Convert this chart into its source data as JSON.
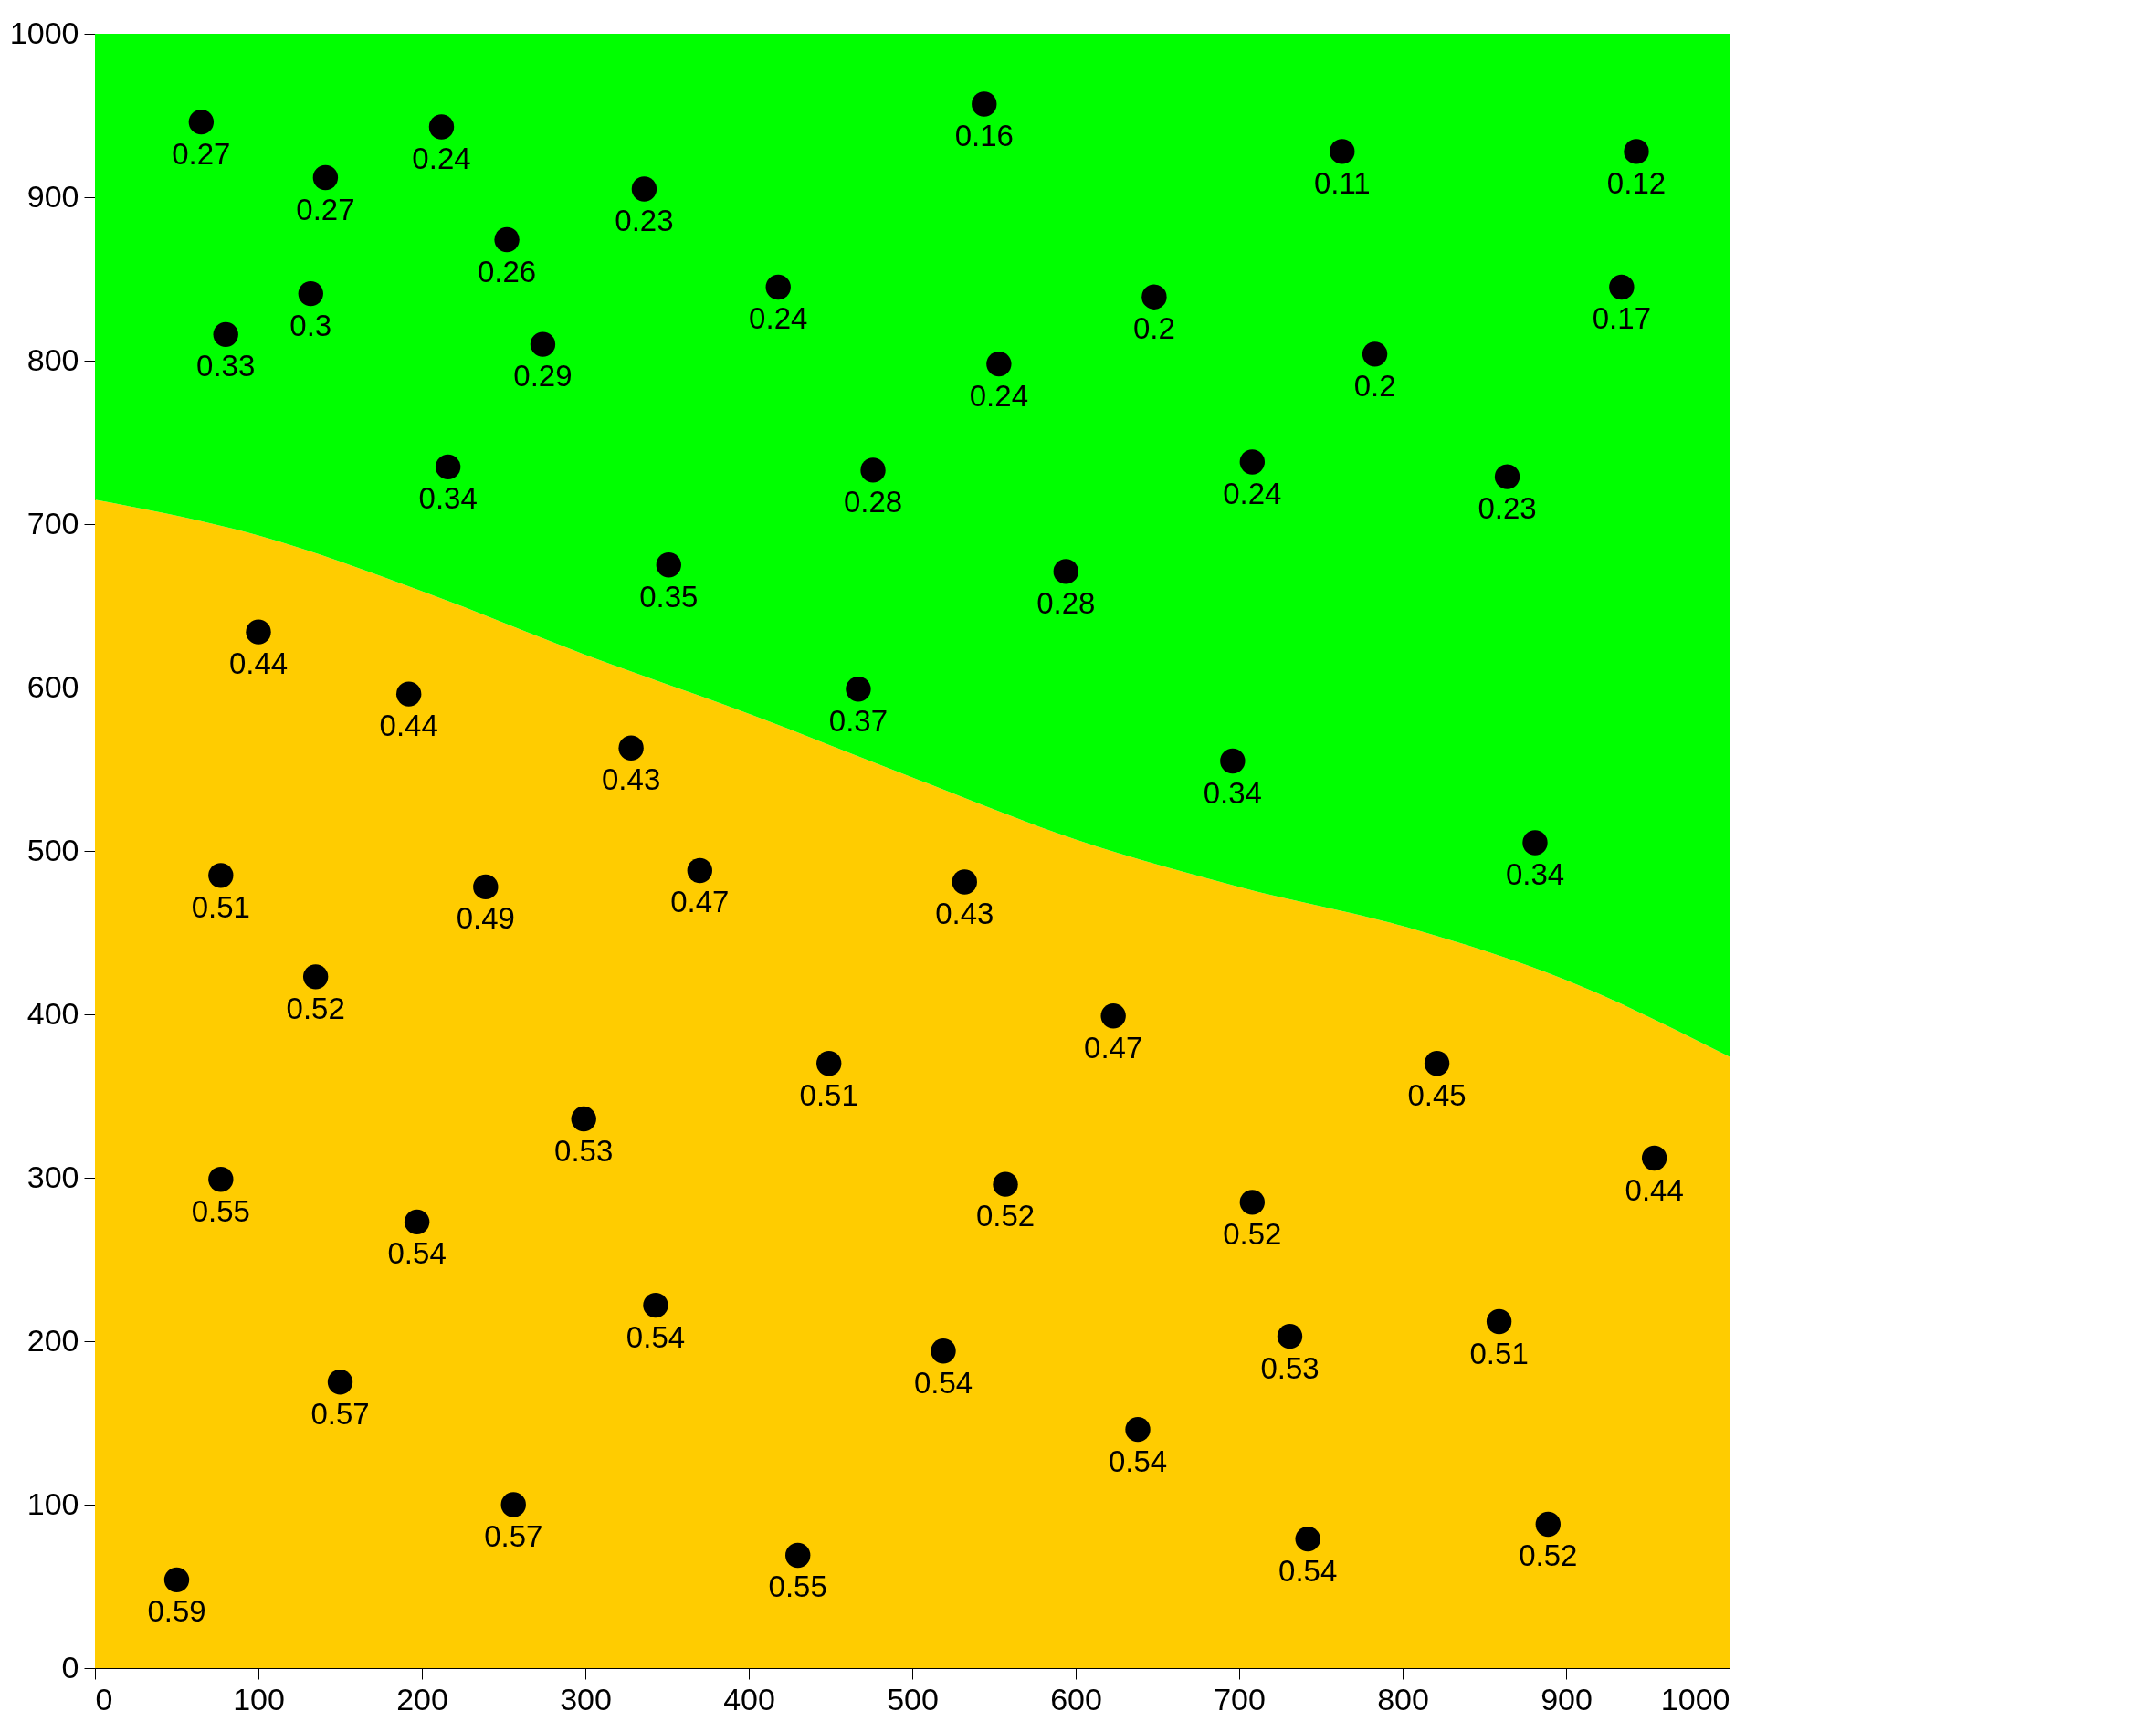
{
  "chart_data": {
    "type": "scatter",
    "xlim": [
      0,
      1000
    ],
    "ylim": [
      0,
      1000
    ],
    "xticks": [
      0,
      100,
      200,
      300,
      400,
      500,
      600,
      700,
      800,
      900,
      1000
    ],
    "yticks": [
      0,
      100,
      200,
      300,
      400,
      500,
      600,
      700,
      800,
      900,
      1000
    ],
    "grid": false,
    "stacked": true,
    "series": [
      {
        "type": "area",
        "color": "#ffcc00",
        "x": [
          0,
          100,
          200,
          300,
          400,
          500,
          600,
          700,
          800,
          900,
          1000
        ],
        "values": [
          715,
          693,
          659,
          620,
          584,
          545,
          507,
          478,
          454,
          421,
          374
        ]
      },
      {
        "type": "area",
        "color": "#00ff00",
        "x": [
          0,
          100,
          200,
          300,
          400,
          500,
          600,
          700,
          800,
          900,
          1000
        ],
        "values": [
          285,
          307,
          341,
          380,
          416,
          455,
          493,
          522,
          546,
          579,
          626
        ]
      },
      {
        "color": "#000000",
        "marker": "circle",
        "x": [
          65,
          141,
          212,
          336,
          252,
          132,
          80,
          274,
          216,
          418,
          544,
          553,
          476,
          351,
          648,
          763,
          783,
          708,
          594,
          943,
          934,
          864,
          467,
          696,
          881,
          100,
          192,
          328,
          77,
          239,
          370,
          532,
          135,
          623,
          449,
          821,
          299,
          77,
          197,
          557,
          708,
          954,
          343,
          519,
          731,
          859,
          150,
          638,
          256,
          50,
          430,
          742,
          889
        ],
        "values": [
          946,
          912,
          943,
          905,
          874,
          841,
          816,
          810,
          735,
          845,
          957,
          798,
          733,
          675,
          839,
          928,
          804,
          738,
          671,
          928,
          845,
          729,
          599,
          555,
          505,
          634,
          596,
          563,
          485,
          478,
          488,
          481,
          423,
          399,
          370,
          370,
          336,
          299,
          273,
          296,
          285,
          312,
          222,
          194,
          203,
          212,
          175,
          146,
          100,
          54,
          69,
          79,
          88
        ]
      }
    ],
    "annotations": [
      {
        "text": "0.27",
        "x": 65,
        "y": 946
      },
      {
        "text": "0.27",
        "x": 141,
        "y": 912
      },
      {
        "text": "0.24",
        "x": 212,
        "y": 943
      },
      {
        "text": "0.23",
        "x": 336,
        "y": 905
      },
      {
        "text": "0.26",
        "x": 252,
        "y": 874
      },
      {
        "text": "0.3",
        "x": 132,
        "y": 841
      },
      {
        "text": "0.33",
        "x": 80,
        "y": 816
      },
      {
        "text": "0.29",
        "x": 274,
        "y": 810
      },
      {
        "text": "0.34",
        "x": 216,
        "y": 735
      },
      {
        "text": "0.24",
        "x": 418,
        "y": 845
      },
      {
        "text": "0.16",
        "x": 544,
        "y": 957
      },
      {
        "text": "0.24",
        "x": 553,
        "y": 798
      },
      {
        "text": "0.28",
        "x": 476,
        "y": 733
      },
      {
        "text": "0.35",
        "x": 351,
        "y": 675
      },
      {
        "text": "0.2",
        "x": 648,
        "y": 839
      },
      {
        "text": "0.11",
        "x": 763,
        "y": 928
      },
      {
        "text": "0.2",
        "x": 783,
        "y": 804
      },
      {
        "text": "0.24",
        "x": 708,
        "y": 738
      },
      {
        "text": "0.28",
        "x": 594,
        "y": 671
      },
      {
        "text": "0.12",
        "x": 943,
        "y": 928
      },
      {
        "text": "0.17",
        "x": 934,
        "y": 845
      },
      {
        "text": "0.23",
        "x": 864,
        "y": 729
      },
      {
        "text": "0.37",
        "x": 467,
        "y": 599
      },
      {
        "text": "0.34",
        "x": 696,
        "y": 555
      },
      {
        "text": "0.34",
        "x": 881,
        "y": 505
      },
      {
        "text": "0.44",
        "x": 100,
        "y": 634
      },
      {
        "text": "0.44",
        "x": 192,
        "y": 596
      },
      {
        "text": "0.43",
        "x": 328,
        "y": 563
      },
      {
        "text": "0.51",
        "x": 77,
        "y": 485
      },
      {
        "text": "0.49",
        "x": 239,
        "y": 478
      },
      {
        "text": "0.47",
        "x": 370,
        "y": 488
      },
      {
        "text": "0.43",
        "x": 532,
        "y": 481
      },
      {
        "text": "0.52",
        "x": 135,
        "y": 423
      },
      {
        "text": "0.47",
        "x": 623,
        "y": 399
      },
      {
        "text": "0.51",
        "x": 449,
        "y": 370
      },
      {
        "text": "0.45",
        "x": 821,
        "y": 370
      },
      {
        "text": "0.53",
        "x": 299,
        "y": 336
      },
      {
        "text": "0.55",
        "x": 77,
        "y": 299
      },
      {
        "text": "0.54",
        "x": 197,
        "y": 273
      },
      {
        "text": "0.52",
        "x": 557,
        "y": 296
      },
      {
        "text": "0.52",
        "x": 708,
        "y": 285
      },
      {
        "text": "0.44",
        "x": 954,
        "y": 312
      },
      {
        "text": "0.54",
        "x": 343,
        "y": 222
      },
      {
        "text": "0.54",
        "x": 519,
        "y": 194
      },
      {
        "text": "0.53",
        "x": 731,
        "y": 203
      },
      {
        "text": "0.51",
        "x": 859,
        "y": 212
      },
      {
        "text": "0.57",
        "x": 150,
        "y": 175
      },
      {
        "text": "0.54",
        "x": 638,
        "y": 146
      },
      {
        "text": "0.57",
        "x": 256,
        "y": 100
      },
      {
        "text": "0.59",
        "x": 50,
        "y": 54
      },
      {
        "text": "0.55",
        "x": 430,
        "y": 69
      },
      {
        "text": "0.54",
        "x": 742,
        "y": 79
      },
      {
        "text": "0.52",
        "x": 889,
        "y": 88
      }
    ]
  }
}
